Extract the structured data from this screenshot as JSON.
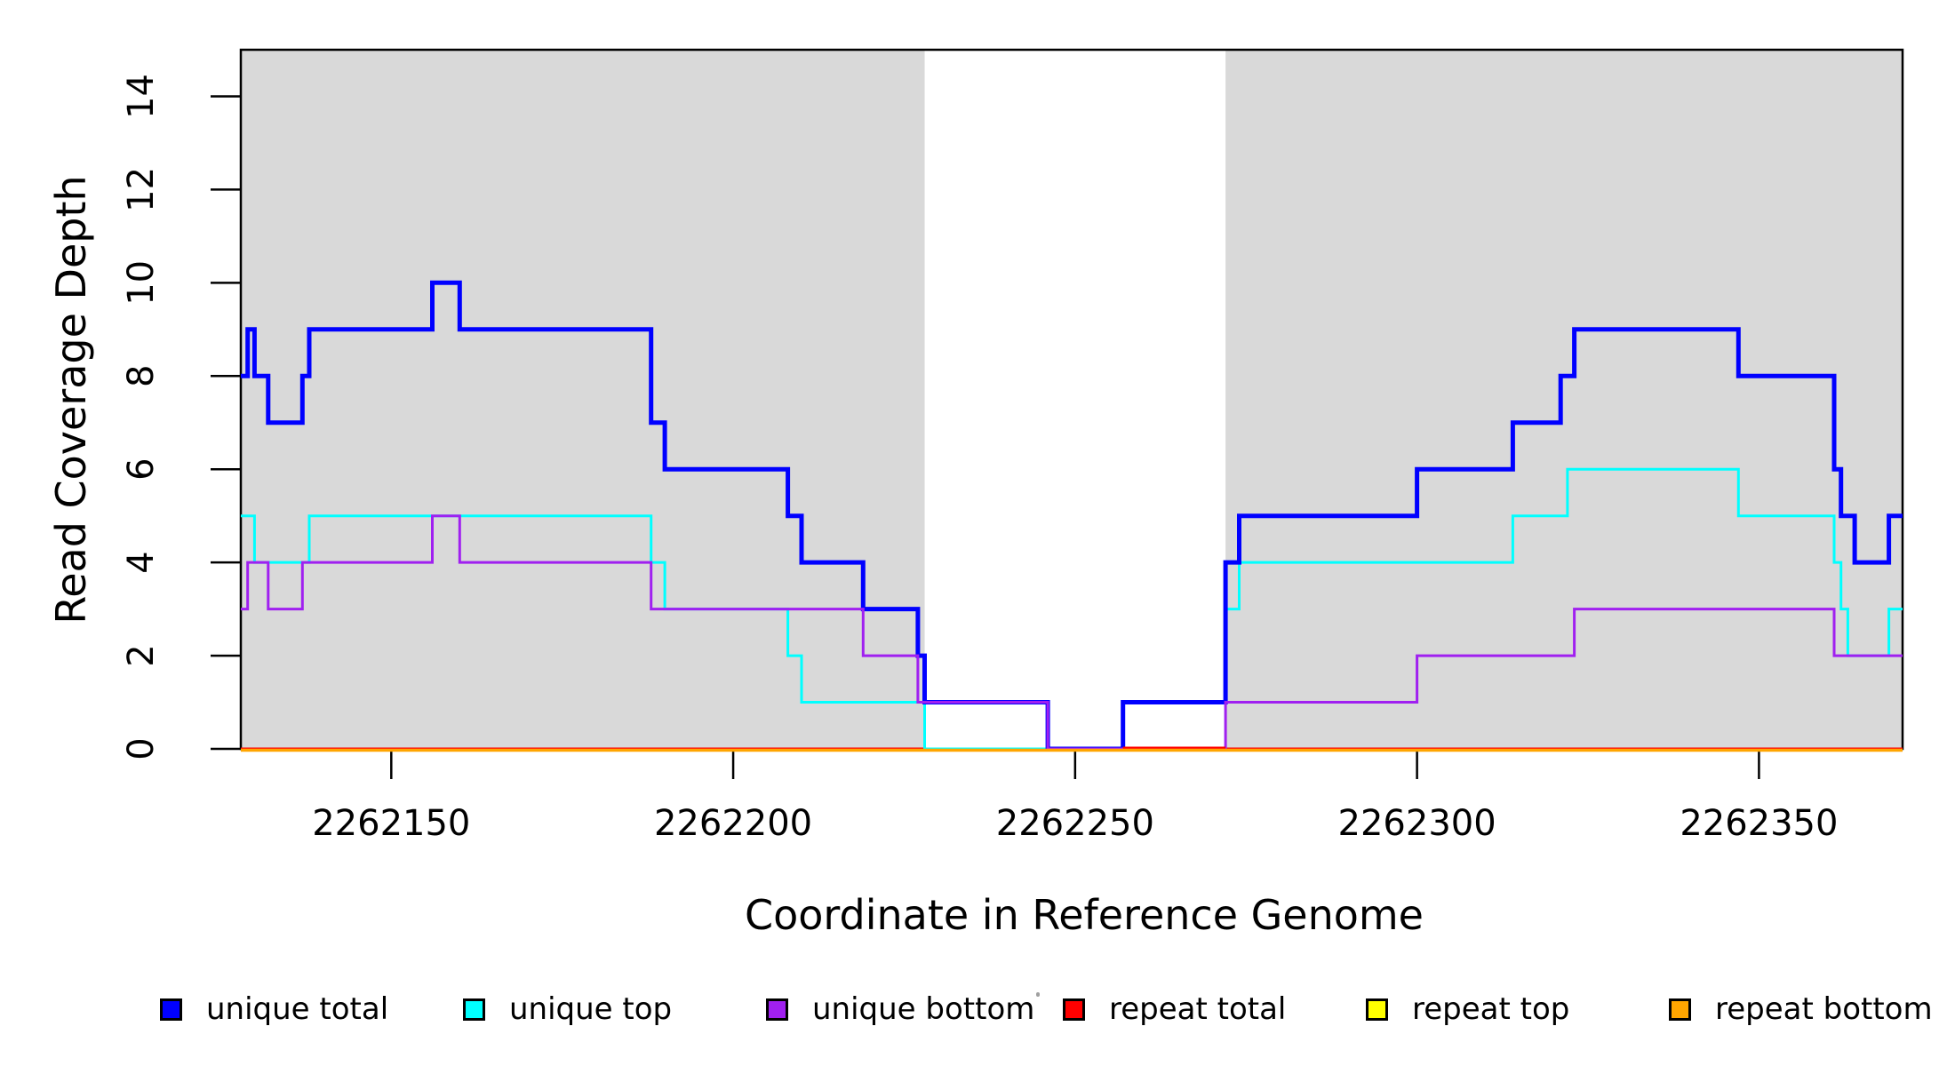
{
  "chart_data": {
    "type": "line",
    "subtype": "step-post",
    "title": "",
    "xlabel": "Coordinate in Reference Genome",
    "ylabel": "Read Coverage Depth",
    "xlim": [
      2262128,
      2262371
    ],
    "ylim": [
      0,
      15
    ],
    "x_ticks": [
      2262150,
      2262200,
      2262250,
      2262300,
      2262350
    ],
    "x_tick_labels": [
      "2262150",
      "2262200",
      "2262250",
      "2262300",
      "2262350"
    ],
    "y_ticks": [
      0,
      2,
      4,
      6,
      8,
      10,
      12,
      14
    ],
    "y_tick_labels": [
      "0",
      "2",
      "4",
      "6",
      "8",
      "10",
      "12",
      "14"
    ],
    "grid": "off",
    "legend_position": "bottom",
    "background_color": "#ffffff",
    "frame_color": "#000000",
    "shaded_region_color": "#d9d9d9",
    "shaded_regions": [
      {
        "x0": 2262128,
        "x1": 2262228
      },
      {
        "x0": 2262272,
        "x1": 2262371
      }
    ],
    "unshaded_gap": {
      "x0": 2262228,
      "x1": 2262272
    },
    "series": [
      {
        "name": "unique total",
        "color": "#0000ff",
        "lw": 5,
        "points": [
          [
            2262128,
            8
          ],
          [
            2262129,
            9
          ],
          [
            2262130,
            8
          ],
          [
            2262132,
            7
          ],
          [
            2262137,
            8
          ],
          [
            2262138,
            9
          ],
          [
            2262156,
            10
          ],
          [
            2262160,
            9
          ],
          [
            2262188,
            7
          ],
          [
            2262190,
            6
          ],
          [
            2262208,
            5
          ],
          [
            2262210,
            4
          ],
          [
            2262219,
            3
          ],
          [
            2262227,
            2
          ],
          [
            2262228,
            1
          ],
          [
            2262246,
            0
          ],
          [
            2262257,
            1
          ],
          [
            2262272,
            4
          ],
          [
            2262274,
            5
          ],
          [
            2262300,
            6
          ],
          [
            2262314,
            7
          ],
          [
            2262321,
            8
          ],
          [
            2262323,
            9
          ],
          [
            2262347,
            8
          ],
          [
            2262361,
            6
          ],
          [
            2262362,
            5
          ],
          [
            2262364,
            4
          ],
          [
            2262369,
            5
          ],
          [
            2262371,
            5
          ]
        ]
      },
      {
        "name": "unique top",
        "color": "#00ffff",
        "lw": 3,
        "points": [
          [
            2262128,
            5
          ],
          [
            2262130,
            4
          ],
          [
            2262138,
            5
          ],
          [
            2262188,
            4
          ],
          [
            2262190,
            3
          ],
          [
            2262208,
            2
          ],
          [
            2262210,
            1
          ],
          [
            2262228,
            0
          ],
          [
            2262257,
            1
          ],
          [
            2262272,
            3
          ],
          [
            2262274,
            4
          ],
          [
            2262314,
            5
          ],
          [
            2262322,
            6
          ],
          [
            2262347,
            5
          ],
          [
            2262361,
            4
          ],
          [
            2262362,
            3
          ],
          [
            2262363,
            2
          ],
          [
            2262369,
            3
          ],
          [
            2262371,
            3
          ]
        ]
      },
      {
        "name": "unique bottom",
        "color": "#a020f0",
        "lw": 3,
        "points": [
          [
            2262128,
            3
          ],
          [
            2262129,
            4
          ],
          [
            2262132,
            3
          ],
          [
            2262137,
            4
          ],
          [
            2262156,
            5
          ],
          [
            2262160,
            4
          ],
          [
            2262188,
            3
          ],
          [
            2262219,
            2
          ],
          [
            2262227,
            1
          ],
          [
            2262246,
            0
          ],
          [
            2262272,
            1
          ],
          [
            2262300,
            2
          ],
          [
            2262323,
            3
          ],
          [
            2262361,
            2
          ],
          [
            2262371,
            2
          ]
        ]
      },
      {
        "name": "repeat total",
        "color": "#ff0000",
        "lw": 3,
        "points": [
          [
            2262128,
            0
          ],
          [
            2262371,
            0
          ]
        ]
      },
      {
        "name": "repeat top",
        "color": "#ffff00",
        "lw": 3,
        "points": [
          [
            2262128,
            0
          ],
          [
            2262371,
            0
          ]
        ]
      },
      {
        "name": "repeat bottom",
        "color": "#ffa500",
        "lw": 3.5,
        "points": [
          [
            2262128,
            0
          ],
          [
            2262371,
            0
          ]
        ]
      }
    ],
    "zero_overlay": {
      "red_visible_segment": [
        2262257,
        2262272
      ]
    }
  }
}
